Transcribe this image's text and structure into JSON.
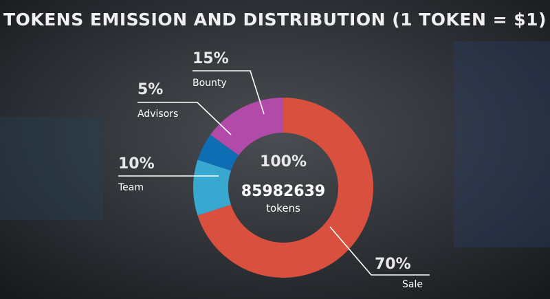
{
  "chart_data": {
    "type": "donut",
    "title": "TOKENS EMISSION AND DISTRIBUTION (1 TOKEN = $1)",
    "categories": [
      "Sale",
      "Team",
      "Advisors",
      "Bounty"
    ],
    "values": [
      70,
      10,
      5,
      15
    ],
    "value_labels": [
      "70%",
      "10%",
      "5%",
      "15%"
    ],
    "colors": [
      "#d9503f",
      "#39a8d0",
      "#0f6db3",
      "#b24aa9"
    ],
    "center_percent": "100%",
    "total_tokens": 85982639,
    "total_unit": "tokens"
  }
}
